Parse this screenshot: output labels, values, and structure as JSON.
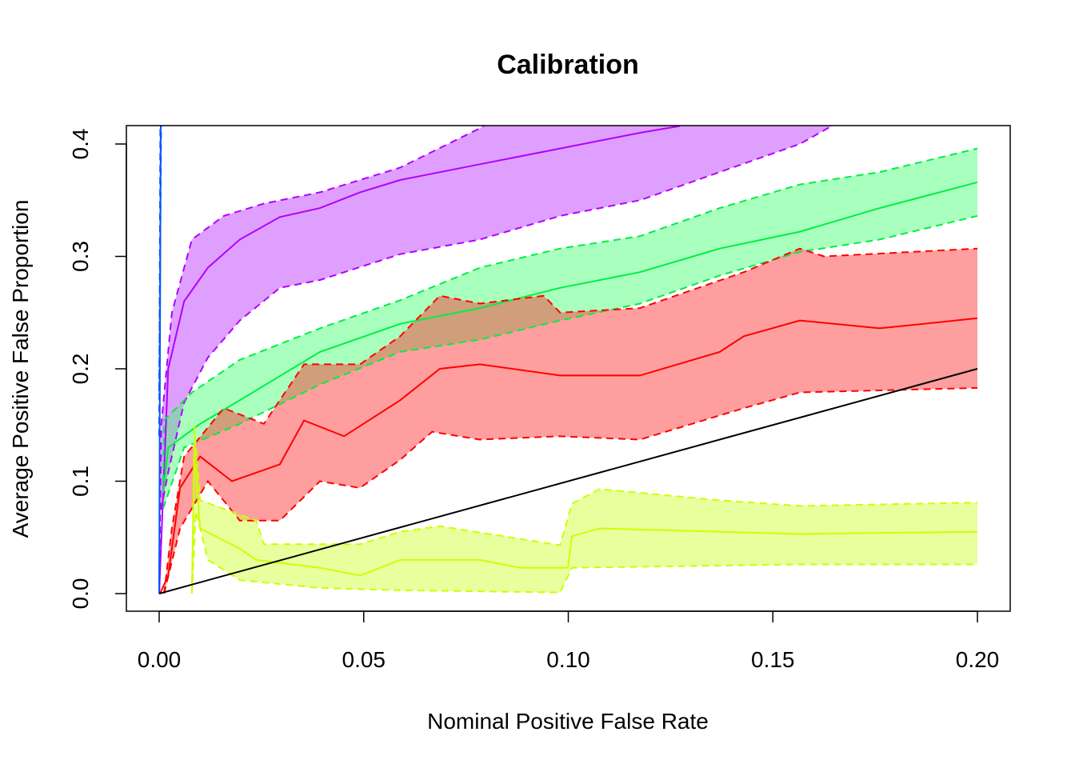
{
  "chart_data": {
    "type": "line",
    "title": "Calibration",
    "xlabel": "Nominal Positive False Rate",
    "ylabel": "Average Positive False Proportion",
    "xlim": [
      0,
      0.2
    ],
    "ylim": [
      0,
      0.4
    ],
    "xticks": [
      "0.00",
      "0.05",
      "0.10",
      "0.15",
      "0.20"
    ],
    "xtick_values": [
      0,
      0.05,
      0.1,
      0.15,
      0.2
    ],
    "yticks": [
      "0.0",
      "0.1",
      "0.2",
      "0.3",
      "0.4"
    ],
    "ytick_values": [
      0,
      0.1,
      0.2,
      0.3,
      0.4
    ],
    "grid": false,
    "reference_line": {
      "x": [
        0,
        0.2
      ],
      "y": [
        0,
        0.2
      ],
      "color": "#000000"
    },
    "series": [
      {
        "name": "purple",
        "color": "#b000ff",
        "fill": "rgba(191,64,255,0.5)",
        "mean": {
          "x": [
            0,
            0.0022,
            0.0061,
            0.0119,
            0.0197,
            0.0295,
            0.0393,
            0.0491,
            0.0589,
            0.0784,
            0.098,
            0.1175,
            0.1273
          ],
          "y": [
            0,
            0.2,
            0.26,
            0.29,
            0.315,
            0.335,
            0.343,
            0.357,
            0.368,
            0.382,
            0.396,
            0.41,
            0.416
          ]
        },
        "upper": {
          "x": [
            0,
            0.0005,
            0.0031,
            0.008,
            0.0158,
            0.0256,
            0.0393,
            0.0589,
            0.0784,
            0.085
          ],
          "y": [
            0,
            0.15,
            0.25,
            0.315,
            0.336,
            0.347,
            0.357,
            0.379,
            0.414,
            0.43
          ]
        },
        "lower": {
          "x": [
            0,
            0.0002,
            0.0022,
            0.0061,
            0.0119,
            0.0197,
            0.0295,
            0.0393,
            0.0589,
            0.0784,
            0.098,
            0.1175,
            0.137,
            0.1566,
            0.1644
          ],
          "y": [
            0,
            0.07,
            0.108,
            0.17,
            0.21,
            0.243,
            0.272,
            0.279,
            0.302,
            0.315,
            0.336,
            0.35,
            0.375,
            0.4,
            0.416
          ]
        }
      },
      {
        "name": "green",
        "color": "#00ee44",
        "fill": "rgba(64,255,110,0.45)",
        "mean": {
          "x": [
            0.001,
            0.0022,
            0.01,
            0.0197,
            0.0393,
            0.0589,
            0.0784,
            0.098,
            0.1175,
            0.137,
            0.1566,
            0.1761,
            0.2
          ],
          "y": [
            0.09,
            0.13,
            0.151,
            0.172,
            0.215,
            0.24,
            0.254,
            0.272,
            0.286,
            0.307,
            0.322,
            0.343,
            0.366
          ]
        },
        "upper": {
          "x": [
            0.001,
            0.0012,
            0.008,
            0.0197,
            0.0393,
            0.0589,
            0.0784,
            0.098,
            0.1175,
            0.137,
            0.1566,
            0.1761,
            0.2
          ],
          "y": [
            0.1,
            0.154,
            0.179,
            0.208,
            0.236,
            0.261,
            0.29,
            0.307,
            0.318,
            0.343,
            0.364,
            0.375,
            0.396
          ]
        },
        "lower": {
          "x": [
            0.001,
            0.0061,
            0.0197,
            0.0393,
            0.0589,
            0.0784,
            0.098,
            0.1175,
            0.137,
            0.1566,
            0.1761,
            0.2
          ],
          "y": [
            0.076,
            0.13,
            0.151,
            0.186,
            0.215,
            0.226,
            0.243,
            0.258,
            0.283,
            0.304,
            0.315,
            0.336
          ]
        }
      },
      {
        "name": "red",
        "color": "#ff0000",
        "fill": "rgba(255,40,40,0.45)",
        "mean": {
          "x": [
            0.0002,
            0.0022,
            0.0051,
            0.01,
            0.0178,
            0.0295,
            0.0354,
            0.0452,
            0.0589,
            0.0686,
            0.0784,
            0.098,
            0.1175,
            0.137,
            0.1429,
            0.1566,
            0.1761,
            0.2
          ],
          "y": [
            0,
            0.016,
            0.094,
            0.122,
            0.1,
            0.115,
            0.154,
            0.14,
            0.172,
            0.2,
            0.204,
            0.194,
            0.194,
            0.215,
            0.229,
            0.243,
            0.236,
            0.245
          ]
        },
        "upper": {
          "x": [
            0.0012,
            0.0031,
            0.0061,
            0.0158,
            0.0256,
            0.0354,
            0.0491,
            0.0589,
            0.0686,
            0.0784,
            0.094,
            0.098,
            0.1175,
            0.1429,
            0.1566,
            0.1625,
            0.2
          ],
          "y": [
            0,
            0.058,
            0.122,
            0.165,
            0.151,
            0.204,
            0.204,
            0.229,
            0.265,
            0.258,
            0.265,
            0.25,
            0.254,
            0.286,
            0.307,
            0.3,
            0.307
          ]
        },
        "lower": {
          "x": [
            0.0012,
            0.0051,
            0.0119,
            0.0197,
            0.0295,
            0.0393,
            0.0491,
            0.0589,
            0.0667,
            0.0784,
            0.098,
            0.1175,
            0.1429,
            0.1566,
            0.2
          ],
          "y": [
            0,
            0.058,
            0.1,
            0.065,
            0.065,
            0.1,
            0.094,
            0.119,
            0.144,
            0.137,
            0.14,
            0.137,
            0.165,
            0.179,
            0.183
          ]
        }
      },
      {
        "name": "yellow-green",
        "color": "#ccff00",
        "fill": "rgba(210,255,60,0.5)",
        "mean": {
          "x": [
            0.008,
            0.0086,
            0.01,
            0.0197,
            0.0237,
            0.0393,
            0.0491,
            0.0589,
            0.0784,
            0.0882,
            0.0999,
            0.1009,
            0.1077,
            0.137,
            0.1566,
            0.2
          ],
          "y": [
            0,
            0.13,
            0.058,
            0.04,
            0.03,
            0.023,
            0.016,
            0.03,
            0.03,
            0.023,
            0.023,
            0.051,
            0.058,
            0.055,
            0.053,
            0.055
          ]
        },
        "upper": {
          "x": [
            0.008,
            0.0086,
            0.01,
            0.0237,
            0.0256,
            0.0491,
            0.0589,
            0.0686,
            0.098,
            0.1009,
            0.1077,
            0.137,
            0.1566,
            0.2
          ],
          "y": [
            0,
            0.15,
            0.083,
            0.065,
            0.044,
            0.044,
            0.055,
            0.06,
            0.043,
            0.08,
            0.093,
            0.083,
            0.078,
            0.081
          ]
        },
        "lower": {
          "x": [
            0.008,
            0.009,
            0.0119,
            0.0197,
            0.0393,
            0.0589,
            0.098,
            0.1009,
            0.1566,
            0.2
          ],
          "y": [
            0,
            0.073,
            0.03,
            0.012,
            0.005,
            0.003,
            0.001,
            0.023,
            0.026,
            0.026
          ]
        }
      },
      {
        "name": "blue",
        "color": "#0055ff",
        "fill": "rgba(0,85,255,0.3)",
        "mean": {
          "x": [
            0,
            0.0004
          ],
          "y": [
            0,
            0.43
          ]
        },
        "upper": {
          "x": [
            0,
            0.0003
          ],
          "y": [
            0.14,
            0.43
          ]
        },
        "lower": {
          "x": [
            0,
            0.0005
          ],
          "y": [
            0.18,
            0.43
          ]
        }
      }
    ]
  }
}
